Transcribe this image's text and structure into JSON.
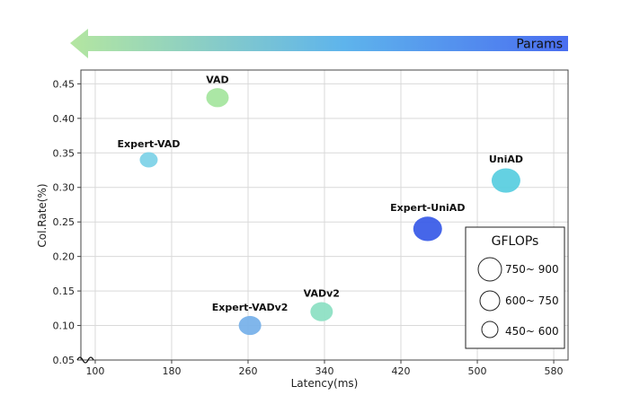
{
  "chart_data": {
    "type": "scatter",
    "title": "",
    "xlabel": "Latency(ms)",
    "ylabel": "Col.Rate(%)",
    "xlim": [
      85,
      595
    ],
    "ylim": [
      0.05,
      0.47
    ],
    "xticks": [
      100,
      180,
      260,
      340,
      420,
      500,
      580
    ],
    "xtick_labels": [
      "100",
      "180",
      "260",
      "340",
      "420",
      "500",
      "580"
    ],
    "yticks": [
      0.05,
      0.1,
      0.15,
      0.2,
      0.25,
      0.3,
      0.35,
      0.4,
      0.45
    ],
    "ytick_labels": [
      "0.05",
      "0.10",
      "0.15",
      "0.20",
      "0.25",
      "0.30",
      "0.35",
      "0.40",
      "0.45"
    ],
    "grid": true,
    "points": [
      {
        "name": "VAD",
        "x": 228,
        "y": 0.43,
        "size": "600~ 750",
        "color": "#a6e6a0"
      },
      {
        "name": "Expert-VAD",
        "x": 156,
        "y": 0.34,
        "size": "450~ 600",
        "color": "#7fd3e8"
      },
      {
        "name": "UniAD",
        "x": 530,
        "y": 0.31,
        "size": "750~ 900",
        "color": "#5ccfe0"
      },
      {
        "name": "Expert-UniAD",
        "x": 448,
        "y": 0.24,
        "size": "750~ 900",
        "color": "#3c5ee8"
      },
      {
        "name": "VADv2",
        "x": 337,
        "y": 0.12,
        "size": "600~ 750",
        "color": "#8ee0c4"
      },
      {
        "name": "Expert-VADv2",
        "x": 262,
        "y": 0.1,
        "size": "600~ 750",
        "color": "#79b2ea"
      }
    ],
    "legend": {
      "title": "GFLOPs",
      "position": "lower-right",
      "entries": [
        "750~ 900",
        "600~ 750",
        "450~ 600"
      ]
    },
    "arrow": {
      "label": "Params",
      "direction": "left",
      "colors": [
        "#b4e6a0",
        "#5eb4ec",
        "#4a6ef0"
      ]
    }
  }
}
